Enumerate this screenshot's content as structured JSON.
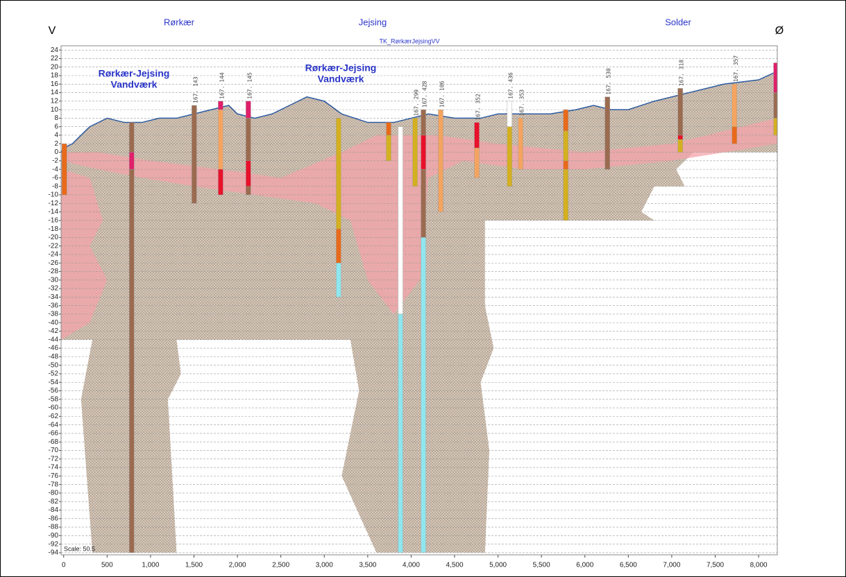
{
  "chart_data": {
    "type": "profile",
    "subtitle": "TK_RørkærJejsingVV",
    "left_label": "V",
    "right_label": "Ø",
    "places": [
      "Rørkær",
      "Jejsing",
      "Solder"
    ],
    "annotations": [
      [
        "Rørkær-Jejsing",
        "Vandværk"
      ],
      [
        "Rørkær-Jejsing",
        "Vandværk"
      ]
    ],
    "scale_text": "Scale: 50.5",
    "xlim": [
      -30,
      8215
    ],
    "ylim": [
      -94.5,
      25
    ],
    "xticks": [
      0,
      500,
      {
        "value": 1000,
        "label": "1,000"
      },
      {
        "value": 1500,
        "label": "1,500"
      },
      {
        "value": 2000,
        "label": "2,000"
      },
      {
        "value": 2500,
        "label": "2,500"
      },
      {
        "value": 3000,
        "label": "3,000"
      },
      {
        "value": 3500,
        "label": "3,500"
      },
      {
        "value": 4000,
        "label": "4,000"
      },
      {
        "value": 4500,
        "label": "4,500"
      },
      {
        "value": 5000,
        "label": "5,000"
      },
      {
        "value": 5500,
        "label": "5,500"
      },
      {
        "value": 6000,
        "label": "6,000"
      },
      {
        "value": 6500,
        "label": "6,500"
      },
      {
        "value": 7000,
        "label": "7,000"
      },
      {
        "value": 7500,
        "label": "7,500"
      },
      {
        "value": 8000,
        "label": "8,000"
      }
    ],
    "yticks": [
      24,
      22,
      20,
      18,
      16,
      14,
      12,
      10,
      8,
      6,
      4,
      2,
      0,
      -2,
      -4,
      -6,
      -8,
      -10,
      -12,
      -14,
      -16,
      -18,
      -20,
      -22,
      -24,
      -26,
      -28,
      -30,
      -32,
      -34,
      -36,
      -38,
      -40,
      -42,
      -44,
      -46,
      -48,
      -50,
      -52,
      -54,
      -56,
      -58,
      -60,
      -62,
      -64,
      -66,
      -68,
      -70,
      -72,
      -74,
      -76,
      -78,
      -80,
      -82,
      -84,
      -86,
      -88,
      -90,
      -92,
      -94
    ],
    "grid": true,
    "areas": [
      {
        "color": "#d6c8ba",
        "texture": "dots",
        "x": [
          -30,
          0,
          100,
          300,
          500,
          700,
          900,
          1100,
          1300,
          1500,
          1700,
          1900,
          2000,
          2200,
          2400,
          2600,
          2800,
          3000,
          3200,
          3500,
          3800,
          4000,
          4200,
          4500,
          4800,
          5000,
          5300,
          5600,
          5900,
          6100,
          6300,
          6500,
          6800,
          7200,
          7600,
          8000,
          8215,
          8215,
          7250,
          7050,
          7150,
          6800,
          6650,
          6800,
          4850,
          4850,
          4950,
          4800,
          4900,
          4850,
          3600,
          3200,
          3400,
          3300,
          1300,
          1350,
          1200,
          1300,
          330,
          200,
          330,
          -30
        ],
        "y": [
          0,
          1,
          2,
          6,
          8,
          7,
          7,
          8,
          8,
          9,
          10,
          11,
          9,
          8,
          9,
          11,
          13,
          12,
          9,
          7,
          7,
          8,
          9,
          8,
          8,
          9,
          9,
          9,
          10,
          11,
          10,
          10,
          12,
          14,
          16,
          17,
          19,
          0,
          0,
          -4,
          -8,
          -8,
          -14,
          -16,
          -16,
          -36,
          -46,
          -54,
          -70,
          -94,
          -94,
          -76,
          -56,
          -44,
          -44,
          -52,
          -58,
          -94,
          -94,
          -58,
          -44,
          -44
        ]
      },
      {
        "color": "#f4a3aa",
        "x": [
          -30,
          400,
          900,
          1500,
          2200,
          2900,
          3300,
          3500,
          3800,
          4100,
          4200,
          4600,
          5300,
          6000,
          7000,
          8215,
          8215,
          7000,
          6000,
          5000,
          4300,
          3600,
          3200,
          2500,
          1800,
          1000,
          400,
          -30
        ],
        "y": [
          -2,
          -4,
          -6,
          -8,
          -10,
          -12,
          -16,
          -30,
          -38,
          -30,
          -6,
          -2,
          -4,
          -4,
          -2,
          2,
          8,
          2,
          0,
          2,
          4,
          4,
          0,
          -6,
          -4,
          -2,
          0,
          0
        ]
      },
      {
        "color": "#f4a3aa",
        "x": [
          -30,
          300,
          450,
          300,
          500,
          300,
          -30
        ],
        "y": [
          -4,
          -6,
          -16,
          -22,
          -30,
          -40,
          -44
        ]
      }
    ],
    "terrain": {
      "color": "#2c5aa0",
      "x": [
        -30,
        0,
        100,
        300,
        500,
        700,
        900,
        1100,
        1300,
        1500,
        1700,
        1900,
        2000,
        2200,
        2400,
        2600,
        2800,
        3000,
        3200,
        3500,
        3800,
        4000,
        4200,
        4500,
        4800,
        5000,
        5300,
        5600,
        5900,
        6100,
        6300,
        6500,
        6800,
        7200,
        7600,
        8000,
        8215
      ],
      "y": [
        0,
        1,
        2,
        6,
        8,
        7,
        7,
        8,
        8,
        9,
        10,
        11,
        9,
        8,
        9,
        11,
        13,
        12,
        9,
        7,
        7,
        8,
        9,
        8,
        8,
        9,
        9,
        9,
        10,
        11,
        10,
        10,
        12,
        14,
        16,
        17,
        19
      ]
    },
    "boreholes": [
      {
        "x": 8,
        "layers": [
          {
            "top": 2,
            "bottom": -10,
            "color": "#e86a1a"
          }
        ]
      },
      {
        "x": 783,
        "layers": [
          {
            "top": 7,
            "bottom": 0,
            "color": "#9b6b50"
          },
          {
            "top": 0,
            "bottom": -4,
            "color": "#e0206a"
          },
          {
            "top": -4,
            "bottom": -94,
            "color": "#9b6b50"
          }
        ]
      },
      {
        "x": 1503,
        "label": "167. 143",
        "layers": [
          {
            "top": 11,
            "bottom": -12,
            "color": "#9b6b50"
          }
        ]
      },
      {
        "x": 1807,
        "label": "167. 144",
        "layers": [
          {
            "top": 12,
            "bottom": 10,
            "color": "#e0206a"
          },
          {
            "top": 10,
            "bottom": -4,
            "color": "#f4a460"
          },
          {
            "top": -4,
            "bottom": -10,
            "color": "#e8102a"
          }
        ]
      },
      {
        "x": 2126,
        "label": "167. 145",
        "layers": [
          {
            "top": 12,
            "bottom": 8,
            "color": "#e0206a"
          },
          {
            "top": 8,
            "bottom": -2,
            "color": "#9b6b50"
          },
          {
            "top": -2,
            "bottom": -8,
            "color": "#e8102a"
          },
          {
            "top": -8,
            "bottom": -10,
            "color": "#9b6b50"
          }
        ]
      },
      {
        "x": 3165,
        "layers": [
          {
            "top": 8,
            "bottom": -18,
            "color": "#d4b020"
          },
          {
            "top": -18,
            "bottom": -26,
            "color": "#e86a1a"
          },
          {
            "top": -26,
            "bottom": -34,
            "color": "#8fe6ee"
          }
        ]
      },
      {
        "x": 3741,
        "layers": [
          {
            "top": 7,
            "bottom": 4,
            "color": "#e86a1a"
          },
          {
            "top": 4,
            "bottom": -2,
            "color": "#d4b020"
          }
        ]
      },
      {
        "x": 3877,
        "layers": [
          {
            "top": 6,
            "bottom": -38,
            "color": "#ffffff"
          },
          {
            "top": -38,
            "bottom": -94,
            "color": "#8fe6ee"
          }
        ]
      },
      {
        "x": 4045,
        "label": "167. 299",
        "layers": [
          {
            "top": 8,
            "bottom": -8,
            "color": "#d4b020"
          }
        ]
      },
      {
        "x": 4141,
        "label": "167. 428",
        "layers": [
          {
            "top": 10,
            "bottom": 4,
            "color": "#9b6b50"
          },
          {
            "top": 4,
            "bottom": -4,
            "color": "#e8102a"
          },
          {
            "top": -4,
            "bottom": -20,
            "color": "#9b6b50"
          },
          {
            "top": -20,
            "bottom": -94,
            "color": "#8fe6ee"
          }
        ]
      },
      {
        "x": 4340,
        "label": "167. 106",
        "layers": [
          {
            "top": 10,
            "bottom": -14,
            "color": "#f4a460"
          }
        ]
      },
      {
        "x": 4756,
        "label": "167. 352",
        "layers": [
          {
            "top": 7,
            "bottom": 1,
            "color": "#e8102a"
          },
          {
            "top": 1,
            "bottom": -6,
            "color": "#f4a460"
          }
        ]
      },
      {
        "x": 5132,
        "label": "167. 436",
        "layers": [
          {
            "top": 12,
            "bottom": 6,
            "color": "#ffffff"
          },
          {
            "top": 6,
            "bottom": -8,
            "color": "#d4b020"
          }
        ]
      },
      {
        "x": 5260,
        "label": "167. 353",
        "layers": [
          {
            "top": 8,
            "bottom": -4,
            "color": "#f4a460"
          }
        ]
      },
      {
        "x": 5780,
        "layers": [
          {
            "top": 10,
            "bottom": 5,
            "color": "#e86a1a"
          },
          {
            "top": 5,
            "bottom": -2,
            "color": "#d4b020"
          },
          {
            "top": -2,
            "bottom": -4,
            "color": "#e86a1a"
          },
          {
            "top": -4,
            "bottom": -16,
            "color": "#d4b020"
          }
        ]
      },
      {
        "x": 6259,
        "label": "167. 530",
        "layers": [
          {
            "top": 13,
            "bottom": -4,
            "color": "#9b6b50"
          }
        ]
      },
      {
        "x": 7098,
        "label": "167. 318",
        "layers": [
          {
            "top": 15,
            "bottom": 4,
            "color": "#9b6b50"
          },
          {
            "top": 4,
            "bottom": 3,
            "color": "#e8102a"
          },
          {
            "top": 3,
            "bottom": 0,
            "color": "#d4b020"
          }
        ]
      },
      {
        "x": 7722,
        "label": "167. 357",
        "layers": [
          {
            "top": 16,
            "bottom": 6,
            "color": "#f4a460"
          },
          {
            "top": 6,
            "bottom": 2,
            "color": "#e86a1a"
          }
        ]
      },
      {
        "x": 8200,
        "layers": [
          {
            "top": 21,
            "bottom": 14,
            "color": "#e0206a"
          },
          {
            "top": 14,
            "bottom": 8,
            "color": "#9b6b50"
          },
          {
            "top": 8,
            "bottom": 4,
            "color": "#d4b020"
          }
        ]
      }
    ]
  }
}
